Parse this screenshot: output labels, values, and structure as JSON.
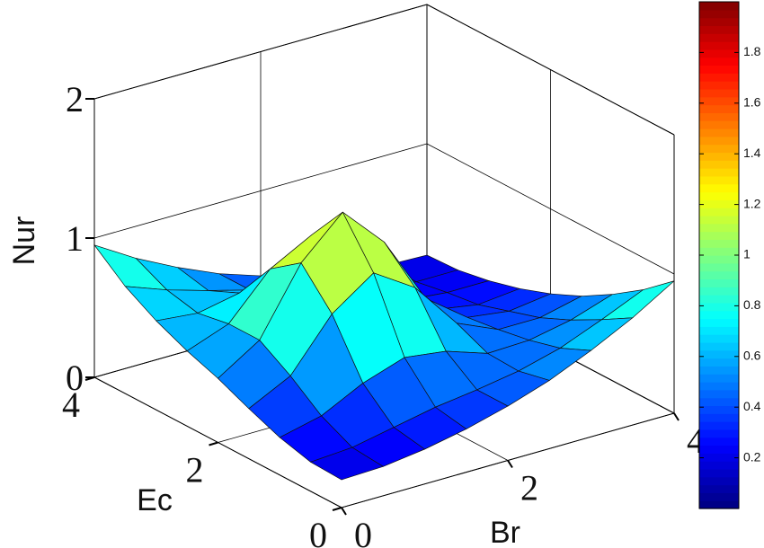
{
  "chart_data": {
    "type": "surface",
    "x_label": "Br",
    "y_label": "Ec",
    "z_label": "Nur",
    "x": [
      0,
      0.5,
      1,
      1.5,
      2,
      2.5,
      3,
      3.5,
      4
    ],
    "y": [
      0,
      0.5,
      1,
      1.5,
      2,
      2.5,
      3,
      3.5,
      4
    ],
    "z": [
      [
        0.2,
        0.21,
        0.25,
        0.31,
        0.39,
        0.49,
        0.62,
        0.77,
        0.95
      ],
      [
        0.21,
        0.23,
        0.29,
        0.35,
        0.39,
        0.44,
        0.52,
        0.64,
        0.77
      ],
      [
        0.27,
        0.34,
        0.49,
        0.59,
        0.55,
        0.45,
        0.46,
        0.52,
        0.62
      ],
      [
        0.36,
        0.51,
        0.87,
        1.08,
        0.89,
        0.55,
        0.42,
        0.42,
        0.49
      ],
      [
        0.46,
        0.65,
        1.12,
        1.4,
        1.1,
        0.61,
        0.39,
        0.35,
        0.39
      ],
      [
        0.54,
        0.65,
        0.96,
        1.12,
        0.89,
        0.51,
        0.33,
        0.28,
        0.31
      ],
      [
        0.64,
        0.61,
        0.67,
        0.68,
        0.55,
        0.37,
        0.28,
        0.25,
        0.25
      ],
      [
        0.77,
        0.66,
        0.57,
        0.49,
        0.39,
        0.3,
        0.24,
        0.21,
        0.21
      ],
      [
        0.95,
        0.77,
        0.62,
        0.49,
        0.39,
        0.31,
        0.25,
        0.21,
        0.2
      ]
    ],
    "xlim": [
      0,
      4
    ],
    "ylim": [
      0,
      4
    ],
    "zlim": [
      0,
      2
    ],
    "xticks": [
      0,
      2,
      4
    ],
    "yticks": [
      0,
      2,
      4
    ],
    "zticks": [
      0,
      1,
      2
    ],
    "grid": true,
    "colormap": "jet",
    "colorbar": {
      "lim": [
        0,
        2
      ],
      "ticks": [
        0.2,
        0.4,
        0.6,
        0.8,
        1,
        1.2,
        1.4,
        1.6,
        1.8
      ]
    }
  }
}
